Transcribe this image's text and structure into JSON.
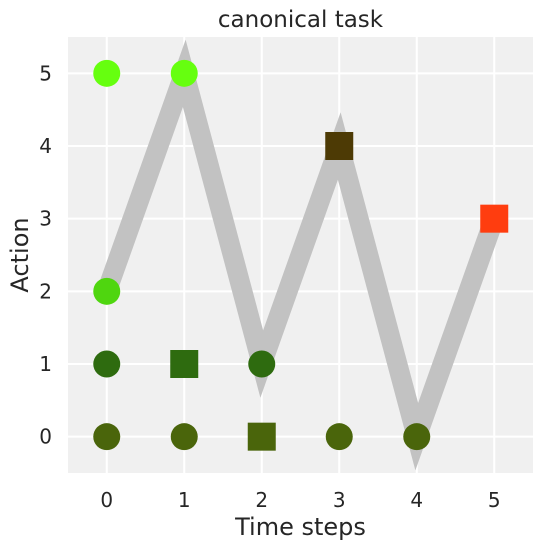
{
  "chart_data": {
    "type": "scatter",
    "title": "canonical task",
    "xlabel": "Time steps",
    "ylabel": "Action",
    "xlim": [
      -0.5,
      5.5
    ],
    "ylim": [
      -0.5,
      5.5
    ],
    "xticks": [
      0,
      1,
      2,
      3,
      4,
      5
    ],
    "yticks": [
      0,
      1,
      2,
      3,
      4,
      5
    ],
    "grid": true,
    "background_color": "#f0f0f0",
    "grid_color": "#ffffff",
    "path": {
      "color": "#bfbfbf",
      "points": [
        {
          "x": 0,
          "y": 2
        },
        {
          "x": 1,
          "y": 5
        },
        {
          "x": 2,
          "y": 1
        },
        {
          "x": 3,
          "y": 4
        },
        {
          "x": 4,
          "y": 0
        },
        {
          "x": 5,
          "y": 3
        }
      ]
    },
    "markers": [
      {
        "x": 0,
        "y": 5,
        "shape": "circle",
        "color": "#66ff0f"
      },
      {
        "x": 0,
        "y": 2,
        "shape": "circle",
        "color": "#4fd60f"
      },
      {
        "x": 0,
        "y": 1,
        "shape": "circle",
        "color": "#2e6b0f"
      },
      {
        "x": 0,
        "y": 0,
        "shape": "circle",
        "color": "#4a650b"
      },
      {
        "x": 1,
        "y": 5,
        "shape": "circle",
        "color": "#66ff0f"
      },
      {
        "x": 1,
        "y": 1,
        "shape": "square",
        "color": "#2e6b0f"
      },
      {
        "x": 1,
        "y": 0,
        "shape": "circle",
        "color": "#4a650b"
      },
      {
        "x": 2,
        "y": 1,
        "shape": "circle",
        "color": "#2e6b0f"
      },
      {
        "x": 2,
        "y": 0,
        "shape": "square",
        "color": "#4a650b"
      },
      {
        "x": 3,
        "y": 4,
        "shape": "square",
        "color": "#4d3a05"
      },
      {
        "x": 3,
        "y": 0,
        "shape": "circle",
        "color": "#4a650b"
      },
      {
        "x": 4,
        "y": 0,
        "shape": "circle",
        "color": "#4a650b"
      },
      {
        "x": 5,
        "y": 3,
        "shape": "square",
        "color": "#ff3d0f"
      }
    ]
  }
}
